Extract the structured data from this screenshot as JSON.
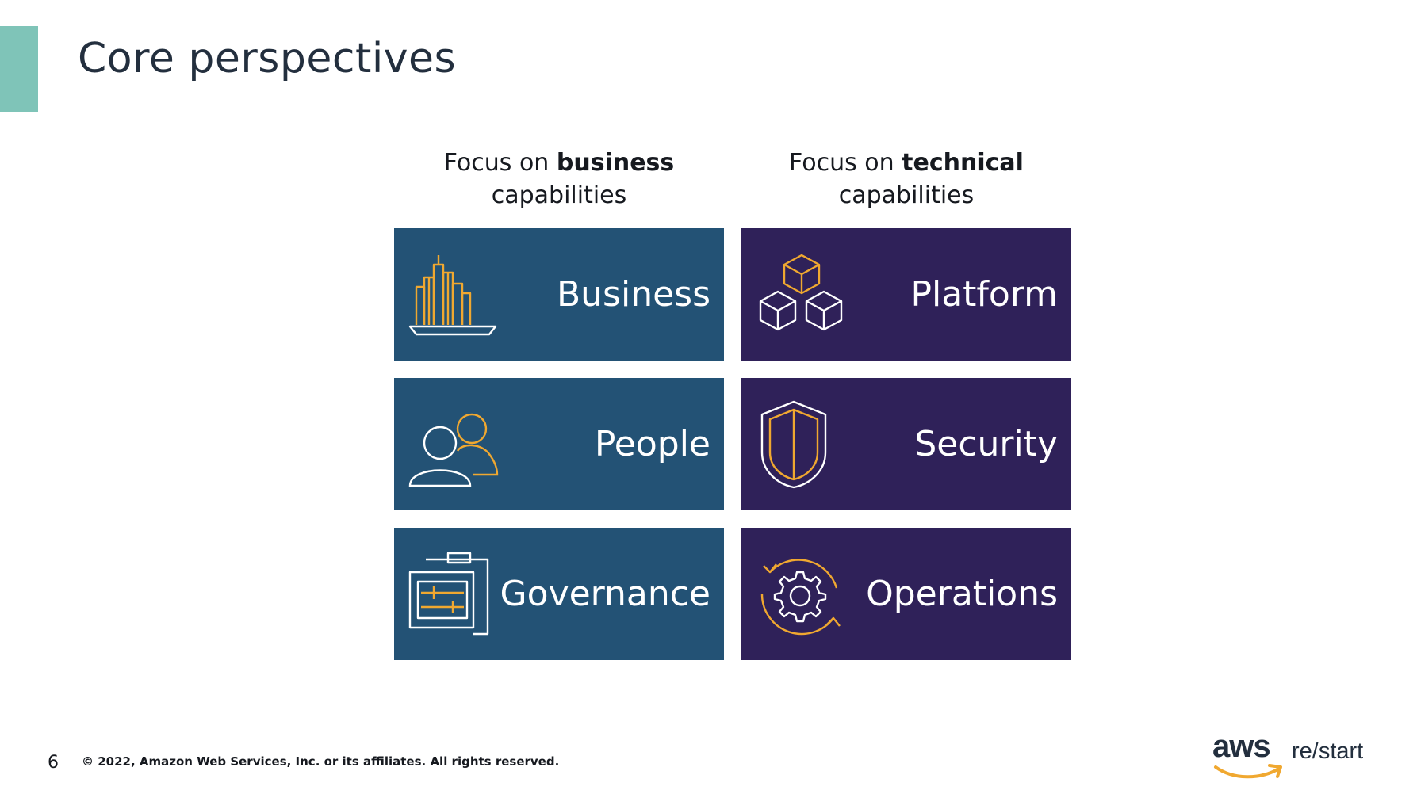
{
  "slide": {
    "title": "Core perspectives",
    "page_number": "6",
    "copyright": "© 2022, Amazon Web Services, Inc. or its affiliates. All rights reserved."
  },
  "columns": {
    "left": {
      "prefix": "Focus on ",
      "bold": "business",
      "suffix": "capabilities"
    },
    "right": {
      "prefix": "Focus on ",
      "bold": "technical",
      "suffix": "capabilities"
    }
  },
  "tiles": [
    {
      "label": "Business",
      "icon": "buildings-icon"
    },
    {
      "label": "Platform",
      "icon": "cubes-icon"
    },
    {
      "label": "People",
      "icon": "people-icon"
    },
    {
      "label": "Security",
      "icon": "shield-icon"
    },
    {
      "label": "Governance",
      "icon": "clipboard-icon"
    },
    {
      "label": "Operations",
      "icon": "gear-cycle-icon"
    }
  ],
  "logo": {
    "brand": "aws",
    "product": "re/start"
  },
  "colors": {
    "accent_bar": "#7fc4b8",
    "business_tiles": "#235275",
    "technical_tiles": "#2f2159",
    "icon_orange": "#f0a830",
    "icon_white": "#ffffff"
  }
}
